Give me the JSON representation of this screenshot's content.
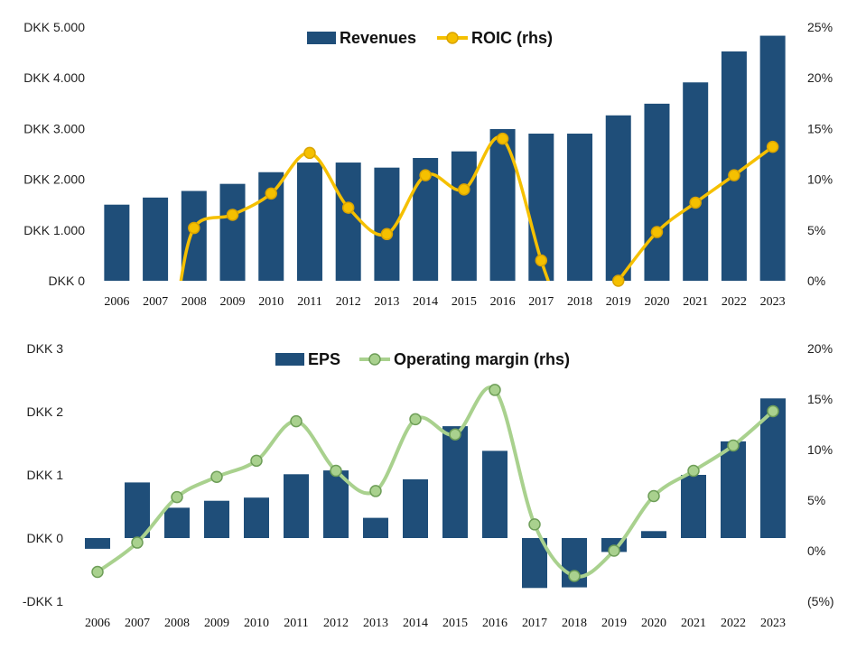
{
  "chart_data": [
    {
      "type": "bar",
      "categories": [
        "2006",
        "2007",
        "2008",
        "2009",
        "2010",
        "2011",
        "2012",
        "2013",
        "2014",
        "2015",
        "2016",
        "2017",
        "2018",
        "2019",
        "2020",
        "2021",
        "2022",
        "2023"
      ],
      "series": [
        {
          "name": "Revenues",
          "kind": "bar",
          "axis": "left",
          "color": "#1f4e79",
          "values": [
            1500,
            1640,
            1770,
            1910,
            2140,
            2330,
            2330,
            2230,
            2420,
            2550,
            2990,
            2900,
            2900,
            3260,
            3490,
            3910,
            4520,
            4830
          ]
        },
        {
          "name": "ROIC (rhs)",
          "kind": "line",
          "axis": "right",
          "color": "#f5c000",
          "values": [
            null,
            null,
            0.052,
            0.065,
            0.086,
            0.126,
            0.072,
            0.046,
            0.104,
            0.09,
            0.14,
            0.02,
            null,
            0.0,
            0.048,
            0.077,
            0.104,
            0.132
          ]
        }
      ],
      "left_axis": {
        "min": 0,
        "max": 5000,
        "ticks": [
          0,
          1000,
          2000,
          3000,
          4000,
          5000
        ],
        "tick_labels": [
          "DKK 0",
          "DKK 1.000",
          "DKK 2.000",
          "DKK 3.000",
          "DKK 4.000",
          "DKK 5.000"
        ]
      },
      "right_axis": {
        "min": 0,
        "max": 0.25,
        "ticks": [
          0,
          0.05,
          0.1,
          0.15,
          0.2,
          0.25
        ],
        "tick_labels": [
          "0%",
          "5%",
          "10%",
          "15%",
          "20%",
          "25%"
        ]
      },
      "legend": {
        "position": "top-center",
        "entries": [
          "Revenues",
          "ROIC (rhs)"
        ]
      },
      "grid": false
    },
    {
      "type": "bar",
      "categories": [
        "2006",
        "2007",
        "2008",
        "2009",
        "2010",
        "2011",
        "2012",
        "2013",
        "2014",
        "2015",
        "2016",
        "2017",
        "2018",
        "2019",
        "2020",
        "2021",
        "2022",
        "2023"
      ],
      "series": [
        {
          "name": "EPS",
          "kind": "bar",
          "axis": "left",
          "color": "#1f4e79",
          "values": [
            -0.17,
            0.88,
            0.48,
            0.59,
            0.64,
            1.01,
            1.07,
            0.32,
            0.93,
            1.77,
            1.38,
            -0.79,
            -0.78,
            -0.22,
            0.11,
            1.0,
            1.53,
            2.21
          ]
        },
        {
          "name": "Operating margin (rhs)",
          "kind": "line",
          "axis": "right",
          "color": "#a9d18e",
          "values": [
            -0.021,
            0.008,
            0.053,
            0.073,
            0.089,
            0.128,
            0.079,
            0.059,
            0.13,
            0.115,
            0.159,
            0.026,
            -0.025,
            0.0,
            0.054,
            0.079,
            0.104,
            0.138
          ]
        }
      ],
      "left_axis": {
        "min": -1,
        "max": 3,
        "ticks": [
          -1,
          0,
          1,
          2,
          3
        ],
        "tick_labels": [
          "-DKK 1",
          "DKK 0",
          "DKK 1",
          "DKK 2",
          "DKK 3"
        ]
      },
      "right_axis": {
        "min": -0.05,
        "max": 0.2,
        "ticks": [
          -0.05,
          0,
          0.05,
          0.1,
          0.15,
          0.2
        ],
        "tick_labels": [
          "(5%)",
          "0%",
          "5%",
          "10%",
          "15%",
          "20%"
        ],
        "negative_label_color": "#c00000"
      },
      "legend": {
        "position": "top-center",
        "entries": [
          "EPS",
          "Operating margin (rhs)"
        ]
      },
      "grid": false
    }
  ]
}
